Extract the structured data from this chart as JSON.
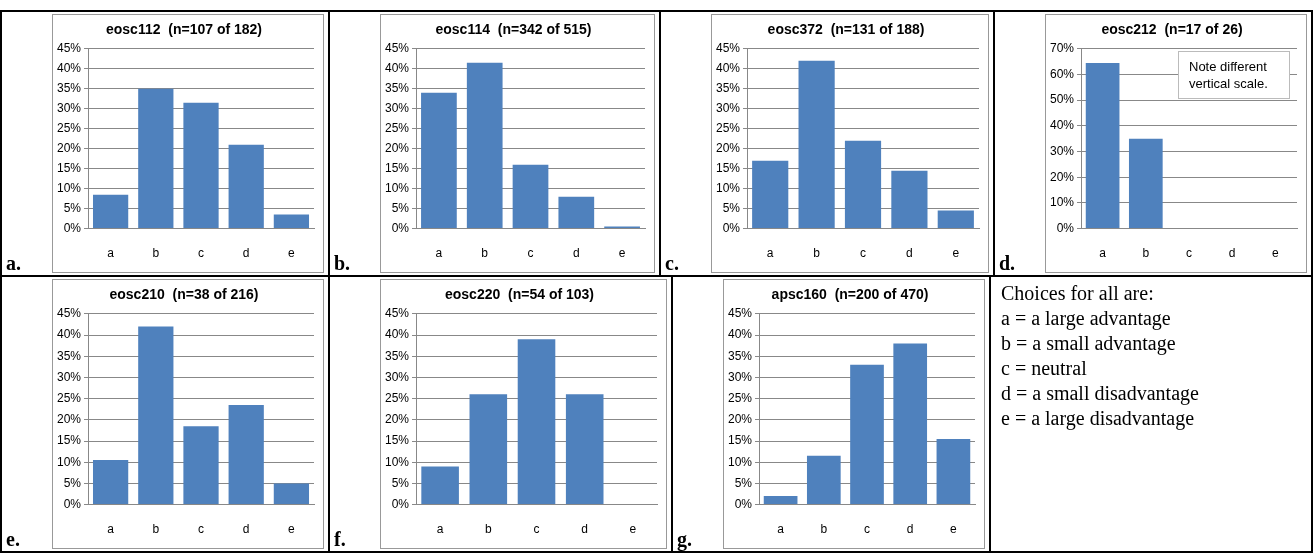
{
  "chart_data": [
    {
      "type": "bar",
      "title": "eosc112  (n=107 of 182)",
      "categories": [
        "a",
        "b",
        "c",
        "d",
        "e"
      ],
      "values": [
        8.5,
        35,
        31.5,
        21,
        3.5
      ],
      "color": "#4f81bd",
      "ylim": [
        0,
        45
      ],
      "yticks": [
        {
          "value": 0,
          "label": "0%"
        },
        {
          "value": 5,
          "label": "5%"
        },
        {
          "value": 10,
          "label": "10%"
        },
        {
          "value": 15,
          "label": "15%"
        },
        {
          "value": 20,
          "label": "20%"
        },
        {
          "value": 25,
          "label": "25%"
        },
        {
          "value": 30,
          "label": "30%"
        },
        {
          "value": 35,
          "label": "35%"
        },
        {
          "value": 40,
          "label": "40%"
        },
        {
          "value": 45,
          "label": "45%"
        }
      ],
      "grid": "y",
      "annotations": [
        "a."
      ]
    },
    {
      "type": "bar",
      "title": "eosc114  (n=342 of 515)",
      "categories": [
        "a",
        "b",
        "c",
        "d",
        "e"
      ],
      "values": [
        34,
        41.5,
        16,
        8,
        0.5
      ],
      "color": "#4f81bd",
      "ylim": [
        0,
        45
      ],
      "yticks": [
        {
          "value": 0,
          "label": "0%"
        },
        {
          "value": 5,
          "label": "5%"
        },
        {
          "value": 10,
          "label": "10%"
        },
        {
          "value": 15,
          "label": "15%"
        },
        {
          "value": 20,
          "label": "20%"
        },
        {
          "value": 25,
          "label": "25%"
        },
        {
          "value": 30,
          "label": "30%"
        },
        {
          "value": 35,
          "label": "35%"
        },
        {
          "value": 40,
          "label": "40%"
        },
        {
          "value": 45,
          "label": "45%"
        }
      ],
      "grid": "y",
      "annotations": [
        "b."
      ]
    },
    {
      "type": "bar",
      "title": "eosc372  (n=131 of 188)",
      "categories": [
        "a",
        "b",
        "c",
        "d",
        "e"
      ],
      "values": [
        17,
        42,
        22,
        14.5,
        4.5
      ],
      "color": "#4f81bd",
      "ylim": [
        0,
        45
      ],
      "yticks": [
        {
          "value": 0,
          "label": "0%"
        },
        {
          "value": 5,
          "label": "5%"
        },
        {
          "value": 10,
          "label": "10%"
        },
        {
          "value": 15,
          "label": "15%"
        },
        {
          "value": 20,
          "label": "20%"
        },
        {
          "value": 25,
          "label": "25%"
        },
        {
          "value": 30,
          "label": "30%"
        },
        {
          "value": 35,
          "label": "35%"
        },
        {
          "value": 40,
          "label": "40%"
        },
        {
          "value": 45,
          "label": "45%"
        }
      ],
      "grid": "y",
      "annotations": [
        "c."
      ]
    },
    {
      "type": "bar",
      "title": "eosc212  (n=17 of 26)",
      "categories": [
        "a",
        "b",
        "c",
        "d",
        "e"
      ],
      "values": [
        64.5,
        35,
        0,
        0,
        0
      ],
      "color": "#4f81bd",
      "ylim": [
        0,
        70
      ],
      "yticks": [
        {
          "value": 0,
          "label": "0%"
        },
        {
          "value": 10,
          "label": "10%"
        },
        {
          "value": 20,
          "label": "20%"
        },
        {
          "value": 30,
          "label": "30%"
        },
        {
          "value": 40,
          "label": "40%"
        },
        {
          "value": 50,
          "label": "50%"
        },
        {
          "value": 60,
          "label": "60%"
        },
        {
          "value": 70,
          "label": "70%"
        }
      ],
      "grid": "y",
      "annotations": [
        "d.",
        "Note different vertical scale."
      ]
    },
    {
      "type": "bar",
      "title": "eosc210  (n=38 of 216)",
      "categories": [
        "a",
        "b",
        "c",
        "d",
        "e"
      ],
      "values": [
        10.5,
        42,
        18.5,
        23.5,
        5
      ],
      "color": "#4f81bd",
      "ylim": [
        0,
        45
      ],
      "yticks": [
        {
          "value": 0,
          "label": "0%"
        },
        {
          "value": 5,
          "label": "5%"
        },
        {
          "value": 10,
          "label": "10%"
        },
        {
          "value": 15,
          "label": "15%"
        },
        {
          "value": 20,
          "label": "20%"
        },
        {
          "value": 25,
          "label": "25%"
        },
        {
          "value": 30,
          "label": "30%"
        },
        {
          "value": 35,
          "label": "35%"
        },
        {
          "value": 40,
          "label": "40%"
        },
        {
          "value": 45,
          "label": "45%"
        }
      ],
      "grid": "y",
      "annotations": [
        "e."
      ]
    },
    {
      "type": "bar",
      "title": "eosc220  (n=54 of 103)",
      "categories": [
        "a",
        "b",
        "c",
        "d",
        "e"
      ],
      "values": [
        9,
        26,
        39,
        26,
        0
      ],
      "color": "#4f81bd",
      "ylim": [
        0,
        45
      ],
      "yticks": [
        {
          "value": 0,
          "label": "0%"
        },
        {
          "value": 5,
          "label": "5%"
        },
        {
          "value": 10,
          "label": "10%"
        },
        {
          "value": 15,
          "label": "15%"
        },
        {
          "value": 20,
          "label": "20%"
        },
        {
          "value": 25,
          "label": "25%"
        },
        {
          "value": 30,
          "label": "30%"
        },
        {
          "value": 35,
          "label": "35%"
        },
        {
          "value": 40,
          "label": "40%"
        },
        {
          "value": 45,
          "label": "45%"
        }
      ],
      "grid": "y",
      "annotations": [
        "f."
      ]
    },
    {
      "type": "bar",
      "title": "apsc160  (n=200 of 470)",
      "categories": [
        "a",
        "b",
        "c",
        "d",
        "e"
      ],
      "values": [
        2,
        11.5,
        33,
        38,
        15.5
      ],
      "color": "#4f81bd",
      "ylim": [
        0,
        45
      ],
      "yticks": [
        {
          "value": 0,
          "label": "0%"
        },
        {
          "value": 5,
          "label": "5%"
        },
        {
          "value": 10,
          "label": "10%"
        },
        {
          "value": 15,
          "label": "15%"
        },
        {
          "value": 20,
          "label": "20%"
        },
        {
          "value": 25,
          "label": "25%"
        },
        {
          "value": 30,
          "label": "30%"
        },
        {
          "value": 35,
          "label": "35%"
        },
        {
          "value": 40,
          "label": "40%"
        },
        {
          "value": 45,
          "label": "45%"
        }
      ],
      "grid": "y",
      "annotations": [
        "g."
      ]
    },
    {
      "type": "other",
      "title": "Choices for all are:",
      "annotations": [
        "a = a large advantage",
        "b = a small advantage",
        "c = neutral",
        "d = a small disadvantage",
        "e = a large disadvantage"
      ]
    }
  ]
}
